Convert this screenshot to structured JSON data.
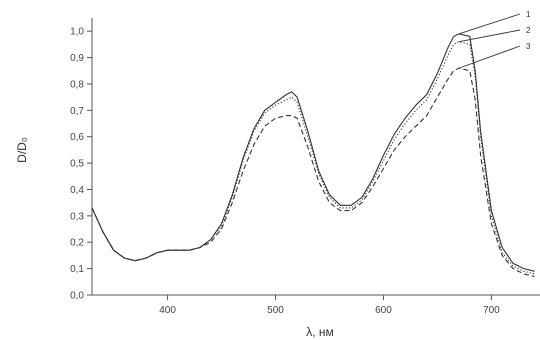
{
  "chart_data": {
    "type": "line",
    "xlabel": "λ, нм",
    "ylabel": "D/D₀",
    "xlim": [
      330,
      745
    ],
    "ylim": [
      0.0,
      1.05
    ],
    "x_ticks": [
      400,
      500,
      600,
      700
    ],
    "x_tick_labels": [
      "400",
      "500",
      "600",
      "700"
    ],
    "y_ticks": [
      0.0,
      0.1,
      0.2,
      0.3,
      0.4,
      0.5,
      0.6,
      0.7,
      0.8,
      0.9,
      1.0
    ],
    "y_tick_labels": [
      "0,0",
      "0,1",
      "0,2",
      "0,3",
      "0,4",
      "0,5",
      "0,6",
      "0,7",
      "0,8",
      "0,9",
      "1,0"
    ],
    "grid": false,
    "legend_position": "top-right",
    "series": [
      {
        "name": "1",
        "style": "solid",
        "x": [
          330,
          340,
          350,
          360,
          370,
          380,
          390,
          400,
          410,
          420,
          430,
          440,
          450,
          460,
          470,
          480,
          490,
          500,
          510,
          515,
          520,
          530,
          540,
          550,
          560,
          570,
          580,
          590,
          600,
          610,
          620,
          630,
          640,
          650,
          660,
          665,
          670,
          680,
          685,
          690,
          700,
          710,
          720,
          730,
          740
        ],
        "y": [
          0.33,
          0.24,
          0.17,
          0.14,
          0.13,
          0.14,
          0.16,
          0.17,
          0.17,
          0.17,
          0.18,
          0.21,
          0.27,
          0.38,
          0.52,
          0.63,
          0.7,
          0.73,
          0.76,
          0.77,
          0.75,
          0.62,
          0.47,
          0.38,
          0.34,
          0.34,
          0.37,
          0.44,
          0.53,
          0.61,
          0.67,
          0.72,
          0.76,
          0.84,
          0.94,
          0.98,
          0.99,
          0.98,
          0.85,
          0.62,
          0.32,
          0.18,
          0.12,
          0.1,
          0.09
        ]
      },
      {
        "name": "2",
        "style": "dotted",
        "x": [
          330,
          340,
          350,
          360,
          370,
          380,
          390,
          400,
          410,
          420,
          430,
          440,
          450,
          460,
          470,
          480,
          490,
          500,
          510,
          515,
          520,
          530,
          540,
          550,
          560,
          570,
          580,
          590,
          600,
          610,
          620,
          630,
          640,
          650,
          660,
          665,
          670,
          680,
          685,
          690,
          700,
          710,
          720,
          730,
          740
        ],
        "y": [
          0.33,
          0.24,
          0.17,
          0.14,
          0.13,
          0.14,
          0.16,
          0.17,
          0.17,
          0.17,
          0.18,
          0.21,
          0.26,
          0.37,
          0.51,
          0.62,
          0.69,
          0.72,
          0.74,
          0.75,
          0.73,
          0.6,
          0.46,
          0.37,
          0.33,
          0.33,
          0.36,
          0.43,
          0.51,
          0.59,
          0.65,
          0.7,
          0.74,
          0.82,
          0.91,
          0.95,
          0.96,
          0.95,
          0.83,
          0.6,
          0.3,
          0.16,
          0.11,
          0.09,
          0.08
        ]
      },
      {
        "name": "3",
        "style": "dashed",
        "x": [
          330,
          340,
          350,
          360,
          370,
          380,
          390,
          400,
          410,
          420,
          430,
          440,
          450,
          460,
          470,
          480,
          490,
          500,
          510,
          515,
          520,
          530,
          540,
          550,
          560,
          570,
          580,
          590,
          600,
          610,
          620,
          630,
          640,
          650,
          660,
          665,
          670,
          680,
          685,
          690,
          700,
          710,
          720,
          730,
          740
        ],
        "y": [
          0.33,
          0.24,
          0.17,
          0.14,
          0.13,
          0.14,
          0.16,
          0.17,
          0.17,
          0.17,
          0.18,
          0.2,
          0.25,
          0.35,
          0.47,
          0.57,
          0.64,
          0.67,
          0.68,
          0.68,
          0.67,
          0.56,
          0.43,
          0.35,
          0.32,
          0.32,
          0.35,
          0.41,
          0.48,
          0.55,
          0.6,
          0.64,
          0.68,
          0.75,
          0.82,
          0.85,
          0.86,
          0.85,
          0.74,
          0.53,
          0.27,
          0.15,
          0.1,
          0.08,
          0.07
        ]
      }
    ]
  }
}
